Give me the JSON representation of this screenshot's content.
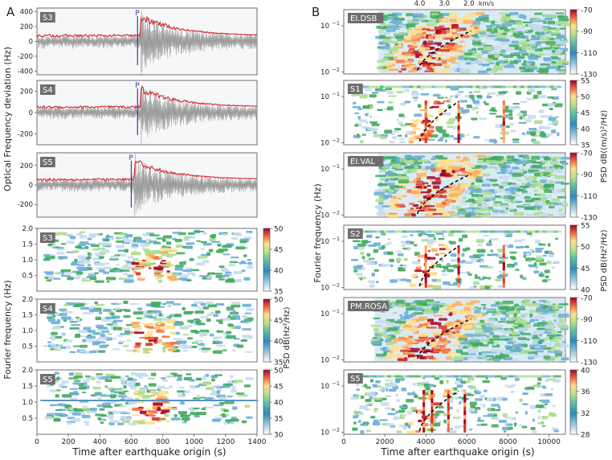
{
  "panel_labels": {
    "a": "A",
    "b": "B"
  },
  "left": {
    "waveforms": [
      {
        "tag": "S3",
        "yticks": [
          400,
          200,
          0,
          -200,
          -400
        ],
        "ylim": [
          -450,
          450
        ],
        "p_label": "P",
        "p_time": 640,
        "onset": 660,
        "envelope_color": "#d62728",
        "signal_color": "#9a9a9a"
      },
      {
        "tag": "S4",
        "yticks": [
          200,
          0,
          -200
        ],
        "ylim": [
          -300,
          300
        ],
        "p_label": "P",
        "p_time": 640,
        "onset": 660,
        "envelope_color": "#d62728",
        "signal_color": "#9a9a9a"
      },
      {
        "tag": "S5",
        "yticks": [
          200,
          0,
          -200
        ],
        "ylim": [
          -330,
          330
        ],
        "p_label": "P",
        "p_time": 600,
        "onset": 620,
        "envelope_color": "#d62728",
        "signal_color": "#9a9a9a"
      }
    ],
    "waveform_ylabel": "Optical Frequency deviation (Hz)",
    "spectrograms": [
      {
        "tag": "S3",
        "yticks": [
          "2.0",
          "1.5",
          "1.0",
          "0.5"
        ],
        "cbar_ticks": [
          "50",
          "45",
          "40",
          "35"
        ],
        "clim": [
          35,
          50
        ]
      },
      {
        "tag": "S4",
        "yticks": [
          "2.0",
          "1.5",
          "1.0",
          "0.5"
        ],
        "cbar_ticks": [
          "50",
          "45",
          "40",
          "35"
        ],
        "clim": [
          35,
          50
        ]
      },
      {
        "tag": "S5",
        "yticks": [
          "2.0",
          "1.5",
          "1.0",
          "0.5"
        ],
        "cbar_ticks": [
          "50",
          "45",
          "40",
          "35",
          "30"
        ],
        "clim": [
          30,
          50
        ]
      }
    ],
    "spec_ylabel": "Fourier frequency (Hz)",
    "cbar_label": "PSD dB(Hz²/Hz)",
    "xticks": [
      "0",
      "200",
      "400",
      "600",
      "800",
      "1000",
      "1200",
      "1400"
    ],
    "xlim": [
      0,
      1400
    ],
    "xlabel": "Time after earthquake origin (s)"
  },
  "right": {
    "top_axis": {
      "ticks": [
        "4.0",
        "3.0",
        "2.0"
      ],
      "unit": "km/s"
    },
    "panels": [
      {
        "tag": "EI.DSB",
        "kind": "seis",
        "cbar_ticks": [
          "-70",
          "-90",
          "-110",
          "-130"
        ]
      },
      {
        "tag": "S1",
        "kind": "fiber",
        "cbar_ticks": [
          "55",
          "50",
          "45",
          "40",
          "35"
        ]
      },
      {
        "tag": "EI.VAL",
        "kind": "seis",
        "cbar_ticks": [
          "-70",
          "-90",
          "-110",
          "-130"
        ]
      },
      {
        "tag": "S2",
        "kind": "fiber",
        "cbar_ticks": [
          "55",
          "50",
          "45",
          "40"
        ]
      },
      {
        "tag": "PM.ROSA",
        "kind": "seis",
        "cbar_ticks": [
          "-70",
          "-90",
          "-110",
          "-130"
        ]
      },
      {
        "tag": "S5",
        "kind": "fiber",
        "cbar_ticks": [
          "40",
          "36",
          "32",
          "28"
        ]
      }
    ],
    "ytick_major": [
      "10",
      "10"
    ],
    "ytick_exp": [
      "−1",
      "−2"
    ],
    "ylabel": "Fourier frequency (Hz)",
    "cbar_label_seis": "PSD dB((m/s)²/Hz)",
    "cbar_label_fiber": "PSD dB(Hz²/Hz)",
    "xticks": [
      "0",
      "2000",
      "4000",
      "6000",
      "8000",
      "10000"
    ],
    "xlim": [
      0,
      10800
    ],
    "xlabel": "Time after earthquake origin (s)"
  }
}
